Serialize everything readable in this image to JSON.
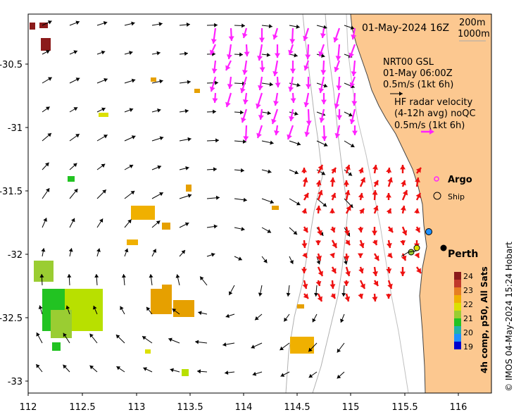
{
  "header": {
    "datetime": "01-May-2024 16Z",
    "depth_contour_1": "200m",
    "depth_contour_2": "1000m"
  },
  "legend_nrt": {
    "line1": "NRT00 GSL",
    "line2": "01-May 06:00Z",
    "line3": "0.5m/s (1kt 6h)"
  },
  "legend_hf": {
    "line1": "HF radar velocity",
    "line2": "(4-12h avg) noQC",
    "line3": "0.5m/s (1kt 6h)"
  },
  "markers": {
    "argo": "Argo",
    "ship": "Ship",
    "city": "Perth"
  },
  "colorbar": {
    "title": "4h comp, p50, All Sats",
    "ticks": [
      "24",
      "23",
      "22",
      "21",
      "20",
      "19"
    ],
    "colors": [
      "#8b1a1a",
      "#c0392b",
      "#e67e22",
      "#f0b000",
      "#dce000",
      "#9acd32",
      "#22c322",
      "#20b2aa",
      "#1e90ff",
      "#0000cd"
    ]
  },
  "credit": "© IMOS 04-May-2024 15:24 Hobart",
  "axes": {
    "x_ticks": [
      "112",
      "112.5",
      "113",
      "113.5",
      "114",
      "114.5",
      "115",
      "115.5",
      "116"
    ],
    "y_ticks": [
      "-30.5",
      "-31",
      "-31.5",
      "-32",
      "-32.5",
      "-33"
    ]
  },
  "colors": {
    "land": "#fcc890",
    "nrt_arrow": "#ff22ff",
    "hf_arrow": "#ee1111",
    "model_arrow": "#000000"
  }
}
